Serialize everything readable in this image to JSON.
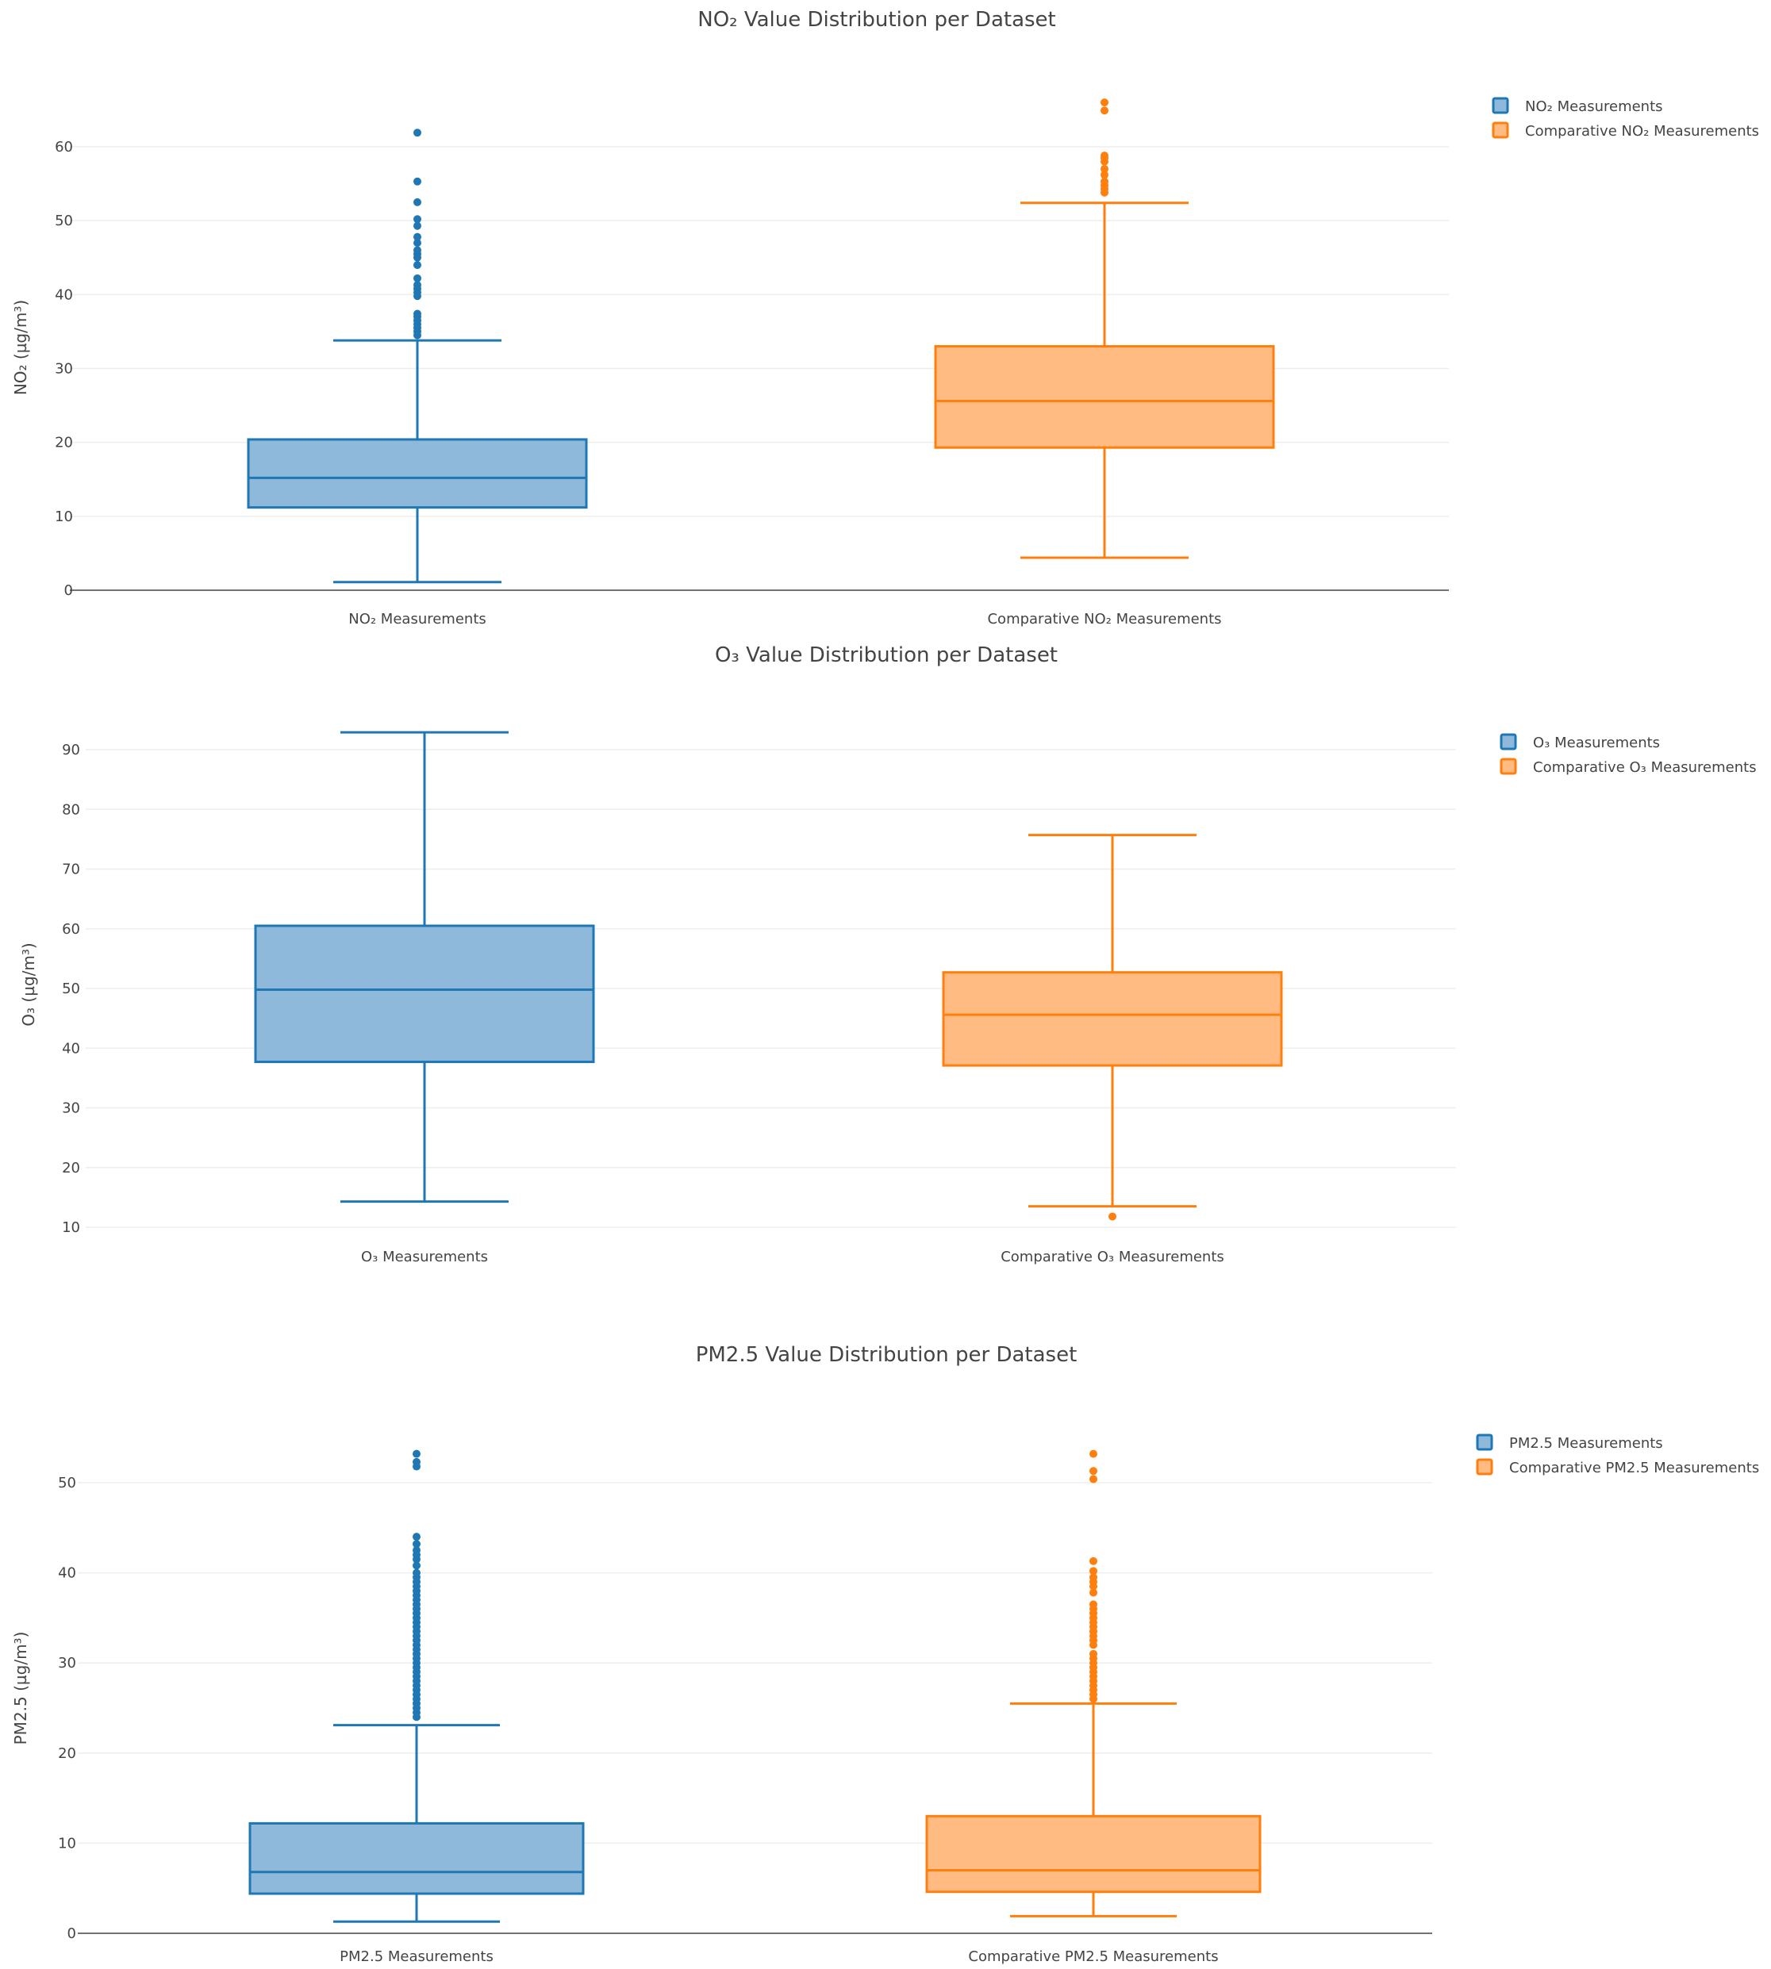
{
  "colors": {
    "blue": "#1f77b4",
    "blue_fill": "#8eb9da",
    "orange": "#ff7f0e",
    "orange_fill": "#ffbb82",
    "grid": "#eeeeee",
    "text": "#444444"
  },
  "chart_data": [
    {
      "type": "box",
      "title": "NO₂ Value Distribution per Dataset",
      "ylabel": "NO₂ (µg/m³)",
      "ylim": [
        0,
        62
      ],
      "yticks": [
        0,
        10,
        20,
        30,
        40,
        50,
        60
      ],
      "zeroline": true,
      "legend_position": "top-right",
      "categories": [
        "NO₂ Measurements",
        "Comparative NO₂ Measurements"
      ],
      "series": [
        {
          "name": "NO₂ Measurements",
          "color": "blue",
          "min": 1.1,
          "q1": 11.2,
          "median": 15.2,
          "q3": 20.4,
          "max": 33.8,
          "outliers": [
            34.5,
            35.0,
            35.5,
            36.0,
            36.5,
            37.0,
            37.4,
            39.8,
            40.3,
            40.8,
            41.3,
            42.2,
            44.0,
            45.0,
            45.5,
            46.0,
            47.0,
            47.8,
            49.3,
            50.2,
            52.5,
            55.3,
            61.9
          ]
        },
        {
          "name": "Comparative NO₂ Measurements",
          "color": "orange",
          "min": 4.4,
          "q1": 19.3,
          "median": 25.6,
          "q3": 33.0,
          "max": 52.4,
          "outliers": [
            53.8,
            54.3,
            54.8,
            55.3,
            56.2,
            57.0,
            58.0,
            58.5,
            58.8,
            64.9,
            66.0
          ]
        }
      ]
    },
    {
      "type": "box",
      "title": "O₃ Value Distribution per Dataset",
      "ylabel": "O₃ (µg/m³)",
      "ylim": [
        10,
        93
      ],
      "yticks": [
        10,
        20,
        30,
        40,
        50,
        60,
        70,
        80,
        90
      ],
      "zeroline": false,
      "legend_position": "top-right",
      "categories": [
        "O₃ Measurements",
        "Comparative O₃ Measurements"
      ],
      "series": [
        {
          "name": "O₃ Measurements",
          "color": "blue",
          "min": 14.3,
          "q1": 37.7,
          "median": 49.8,
          "q3": 60.5,
          "max": 92.9,
          "outliers": []
        },
        {
          "name": "Comparative O₃ Measurements",
          "color": "orange",
          "min": 13.5,
          "q1": 37.1,
          "median": 45.6,
          "q3": 52.7,
          "max": 75.7,
          "outliers": [
            11.8
          ]
        }
      ]
    },
    {
      "type": "box",
      "title": "PM2.5 Value Distribution per Dataset",
      "ylabel": "PM2.5 (µg/m³)",
      "ylim": [
        0,
        53
      ],
      "yticks": [
        0,
        10,
        20,
        30,
        40,
        50
      ],
      "zeroline": true,
      "legend_position": "top-right",
      "categories": [
        "PM2.5 Measurements",
        "Comparative PM2.5 Measurements"
      ],
      "series": [
        {
          "name": "PM2.5 Measurements",
          "color": "blue",
          "min": 1.3,
          "q1": 4.4,
          "median": 6.8,
          "q3": 12.2,
          "max": 23.1,
          "outliers": [
            24.0,
            24.5,
            25.0,
            25.5,
            26.0,
            26.5,
            27.0,
            27.5,
            28.0,
            28.5,
            29.0,
            29.5,
            30.0,
            30.5,
            31.0,
            31.5,
            32.0,
            32.5,
            33.0,
            33.5,
            34.0,
            34.5,
            35.0,
            35.5,
            36.0,
            36.5,
            37.0,
            37.5,
            38.0,
            38.5,
            39.0,
            39.5,
            40.0,
            40.8,
            41.5,
            42.0,
            42.5,
            43.2,
            44.0,
            51.8,
            52.3,
            53.2
          ]
        },
        {
          "name": "Comparative PM2.5 Measurements",
          "color": "orange",
          "min": 1.9,
          "q1": 4.6,
          "median": 7.0,
          "q3": 13.0,
          "max": 25.5,
          "outliers": [
            26.0,
            26.5,
            27.0,
            27.5,
            28.0,
            28.5,
            29.0,
            29.5,
            30.0,
            30.5,
            31.0,
            32.0,
            32.5,
            33.0,
            33.5,
            34.0,
            34.5,
            35.0,
            35.5,
            36.0,
            36.5,
            37.8,
            38.5,
            39.0,
            39.5,
            40.2,
            41.3,
            50.4,
            51.3,
            53.2
          ]
        }
      ]
    }
  ]
}
